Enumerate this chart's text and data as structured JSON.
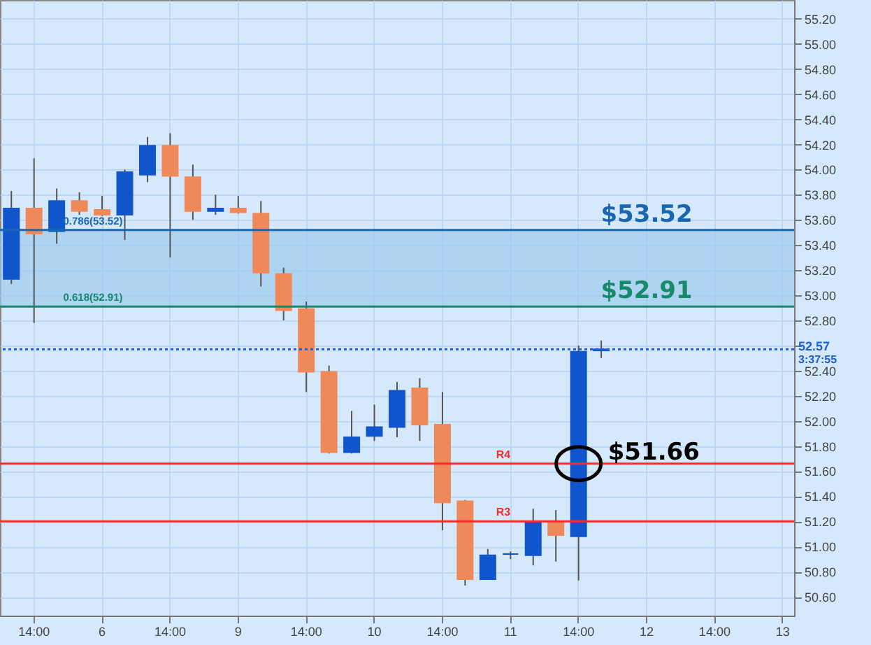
{
  "chart_data": {
    "type": "candlestick",
    "categories": [
      null,
      "14:00",
      null,
      null,
      "6",
      null,
      null,
      "14:00",
      null,
      null,
      "9",
      null,
      null,
      "14:00",
      null,
      null,
      "10",
      null,
      null,
      "14:00",
      null,
      null,
      "11",
      null,
      null,
      "14:00",
      null,
      null,
      "12",
      null,
      null,
      "14:00",
      null,
      null,
      "13"
    ],
    "ohlc": [
      [
        53.13,
        53.83,
        53.09,
        53.69
      ],
      [
        53.69,
        54.09,
        52.78,
        53.49
      ],
      [
        53.51,
        53.85,
        53.41,
        53.75
      ],
      [
        53.75,
        53.82,
        53.64,
        53.67
      ],
      [
        53.68,
        53.79,
        53.63,
        53.64
      ],
      [
        53.64,
        54.0,
        53.44,
        53.98
      ],
      [
        53.96,
        54.26,
        53.9,
        54.19
      ],
      [
        54.19,
        54.29,
        53.3,
        53.95
      ],
      [
        53.94,
        54.04,
        53.6,
        53.67
      ],
      [
        53.67,
        53.8,
        53.64,
        53.69
      ],
      [
        53.69,
        53.79,
        53.65,
        53.66
      ],
      [
        53.65,
        53.75,
        53.07,
        53.18
      ],
      [
        53.17,
        53.22,
        52.8,
        52.88
      ],
      [
        52.89,
        52.95,
        52.23,
        52.39
      ],
      [
        52.39,
        52.44,
        51.74,
        51.75
      ],
      [
        51.75,
        52.08,
        51.74,
        51.87
      ],
      [
        51.88,
        52.13,
        51.84,
        51.95
      ],
      [
        51.95,
        52.31,
        51.87,
        52.24
      ],
      [
        52.26,
        52.34,
        51.84,
        51.97
      ],
      [
        51.97,
        52.23,
        51.13,
        51.35
      ],
      [
        51.36,
        51.37,
        50.69,
        50.74
      ],
      [
        50.74,
        50.98,
        50.74,
        50.93
      ],
      [
        50.94,
        50.96,
        50.9,
        50.94
      ],
      [
        50.93,
        51.3,
        50.85,
        51.19
      ],
      [
        51.19,
        51.29,
        50.88,
        51.09
      ],
      [
        51.08,
        52.6,
        50.73,
        52.55
      ],
      [
        52.56,
        52.64,
        52.5,
        52.57
      ],
      null,
      null,
      null,
      null,
      null,
      null,
      null,
      null
    ],
    "colors": [
      "#1155cc",
      "#f0895a",
      "#1155cc",
      "#f0895a",
      "#f0895a",
      "#1155cc",
      "#1155cc",
      "#f0895a",
      "#f0895a",
      "#1155cc",
      "#f0895a",
      "#f0895a",
      "#f0895a",
      "#f0895a",
      "#f0895a",
      "#1155cc",
      "#1155cc",
      "#1155cc",
      "#f0895a",
      "#f0895a",
      "#f0895a",
      "#1155cc",
      "#1155cc",
      "#1155cc",
      "#f0895a",
      "#1155cc",
      "#1155cc",
      null,
      null,
      null,
      null,
      null,
      null,
      null,
      null
    ],
    "ylim": [
      50.45,
      55.35
    ],
    "yticks": [
      {
        "value": 50.6,
        "label": "50.60"
      },
      {
        "value": 50.8,
        "label": "50.80"
      },
      {
        "value": 51.0,
        "label": "51.00"
      },
      {
        "value": 51.2,
        "label": "51.20"
      },
      {
        "value": 51.4,
        "label": "51.40"
      },
      {
        "value": 51.6,
        "label": "51.60"
      },
      {
        "value": 51.8,
        "label": "51.80"
      },
      {
        "value": 52.0,
        "label": "52.00"
      },
      {
        "value": 52.2,
        "label": "52.20"
      },
      {
        "value": 52.4,
        "label": "52.40"
      },
      {
        "value": 52.6,
        "label": null
      },
      {
        "value": 52.8,
        "label": "52.80"
      },
      {
        "value": 53.0,
        "label": "53.00"
      },
      {
        "value": 53.2,
        "label": "53.20"
      },
      {
        "value": 53.4,
        "label": "53.40"
      },
      {
        "value": 53.6,
        "label": "53.60"
      },
      {
        "value": 53.8,
        "label": "53.80"
      },
      {
        "value": 54.0,
        "label": "54.00"
      },
      {
        "value": 54.2,
        "label": "54.20"
      },
      {
        "value": 54.4,
        "label": "54.40"
      },
      {
        "value": 54.6,
        "label": "54.60"
      },
      {
        "value": 54.8,
        "label": "54.80"
      },
      {
        "value": 55.0,
        "label": "55.00"
      },
      {
        "value": 55.2,
        "label": "55.20"
      }
    ],
    "grid": true,
    "bands": [
      {
        "axis": "y",
        "from": 52.91,
        "to": 53.52,
        "color": "#9ccbee"
      }
    ],
    "ref_lines": [
      {
        "axis": "y",
        "value": 53.52,
        "label": "0.786(53.52)",
        "color": "#1a66b0"
      },
      {
        "axis": "y",
        "value": 52.91,
        "label": "0.618(52.91)",
        "color": "#168a6a"
      },
      {
        "axis": "y",
        "value": 51.66,
        "label": "R4",
        "color": "#ff2a2a"
      },
      {
        "axis": "y",
        "value": 51.2,
        "label": "R3",
        "color": "#ff2a2a"
      },
      {
        "axis": "y",
        "value": 52.57,
        "label": "52.57",
        "color": "#1f5fd0",
        "line_style": "dotted"
      }
    ],
    "annotations": [
      {
        "text": "$53.52",
        "x": "12",
        "y": 53.52
      },
      {
        "text": "$52.91",
        "x": "12",
        "y": 52.91
      },
      {
        "text": "$51.66",
        "y": 51.66
      },
      "3:37:55"
    ]
  }
}
